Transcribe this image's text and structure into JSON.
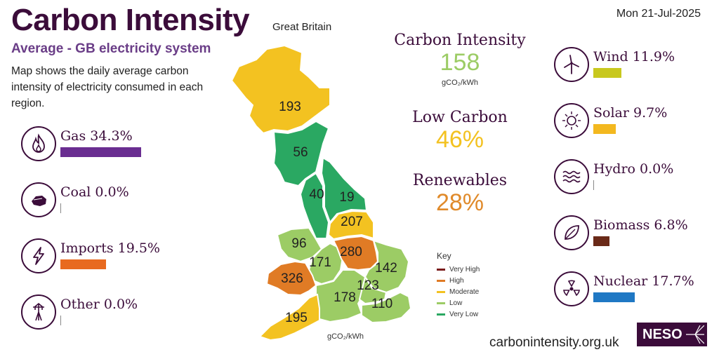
{
  "header": {
    "title": "Carbon Intensity",
    "region": "Great Britain",
    "subtitle": "Average - GB electricity system",
    "description": "Map shows the daily average carbon intensity of electricity consumed in each region.",
    "date": "Mon 21-Jul-2025"
  },
  "fuels_left": [
    {
      "name": "Gas",
      "label": "Gas 34.3%",
      "percent": 34.3,
      "color": "#6a2e91",
      "icon": "flame-icon"
    },
    {
      "name": "Coal",
      "label": "Coal 0.0%",
      "percent": 0.0,
      "color": "#5a1a2e",
      "icon": "coal-icon"
    },
    {
      "name": "Imports",
      "label": "Imports 19.5%",
      "percent": 19.5,
      "color": "#e86a1f",
      "icon": "lightning-icon"
    },
    {
      "name": "Other",
      "label": "Other 0.0%",
      "percent": 0.0,
      "color": "#888888",
      "icon": "pylon-icon"
    }
  ],
  "fuels_right": [
    {
      "name": "Wind",
      "label": "Wind 11.9%",
      "percent": 11.9,
      "color": "#c8c81e",
      "icon": "wind-turbine-icon"
    },
    {
      "name": "Solar",
      "label": "Solar 9.7%",
      "percent": 9.7,
      "color": "#f3b81f",
      "icon": "sun-icon"
    },
    {
      "name": "Hydro",
      "label": "Hydro 0.0%",
      "percent": 0.0,
      "color": "#3b7fb5",
      "icon": "waves-icon"
    },
    {
      "name": "Biomass",
      "label": "Biomass 6.8%",
      "percent": 6.8,
      "color": "#6a2a18",
      "icon": "leaf-icon"
    },
    {
      "name": "Nuclear",
      "label": "Nuclear 17.7%",
      "percent": 17.7,
      "color": "#1f78c4",
      "icon": "radiation-icon"
    }
  ],
  "stats": {
    "intensity_label": "Carbon Intensity",
    "intensity_value": "158",
    "intensity_color": "#9ccc65",
    "intensity_unit": "gCO₂/kWh",
    "low_carbon_label": "Low Carbon",
    "low_carbon_value": "46%",
    "low_carbon_color": "#f3c221",
    "renewables_label": "Renewables",
    "renewables_value": "28%",
    "renewables_color": "#e08a2a"
  },
  "key": {
    "title": "Key",
    "items": [
      {
        "label": "Very High",
        "color": "#7a1c1c"
      },
      {
        "label": "High",
        "color": "#e07b25"
      },
      {
        "label": "Moderate",
        "color": "#f3c221"
      },
      {
        "label": "Low",
        "color": "#9ccc65"
      },
      {
        "label": "Very Low",
        "color": "#2aa862"
      }
    ]
  },
  "map": {
    "unit": "gCO₂/kWh",
    "regions": [
      {
        "name": "North Scotland",
        "value": "193",
        "band": "Moderate"
      },
      {
        "name": "South Scotland",
        "value": "56",
        "band": "Very Low"
      },
      {
        "name": "North West England",
        "value": "40",
        "band": "Very Low"
      },
      {
        "name": "North East England",
        "value": "19",
        "band": "Very Low"
      },
      {
        "name": "Yorkshire",
        "value": "207",
        "band": "Moderate"
      },
      {
        "name": "North Wales",
        "value": "96",
        "band": "Low"
      },
      {
        "name": "West Midlands",
        "value": "171",
        "band": "Low"
      },
      {
        "name": "East Midlands",
        "value": "280",
        "band": "High"
      },
      {
        "name": "East England",
        "value": "142",
        "band": "Low"
      },
      {
        "name": "South Wales",
        "value": "326",
        "band": "High"
      },
      {
        "name": "South England",
        "value": "178",
        "band": "Low"
      },
      {
        "name": "London",
        "value": "123",
        "band": "Low"
      },
      {
        "name": "South East England",
        "value": "110",
        "band": "Low"
      },
      {
        "name": "South West England",
        "value": "195",
        "band": "Moderate"
      }
    ]
  },
  "footer": {
    "site": "carbonintensity.org.uk",
    "brand": "NESO"
  }
}
